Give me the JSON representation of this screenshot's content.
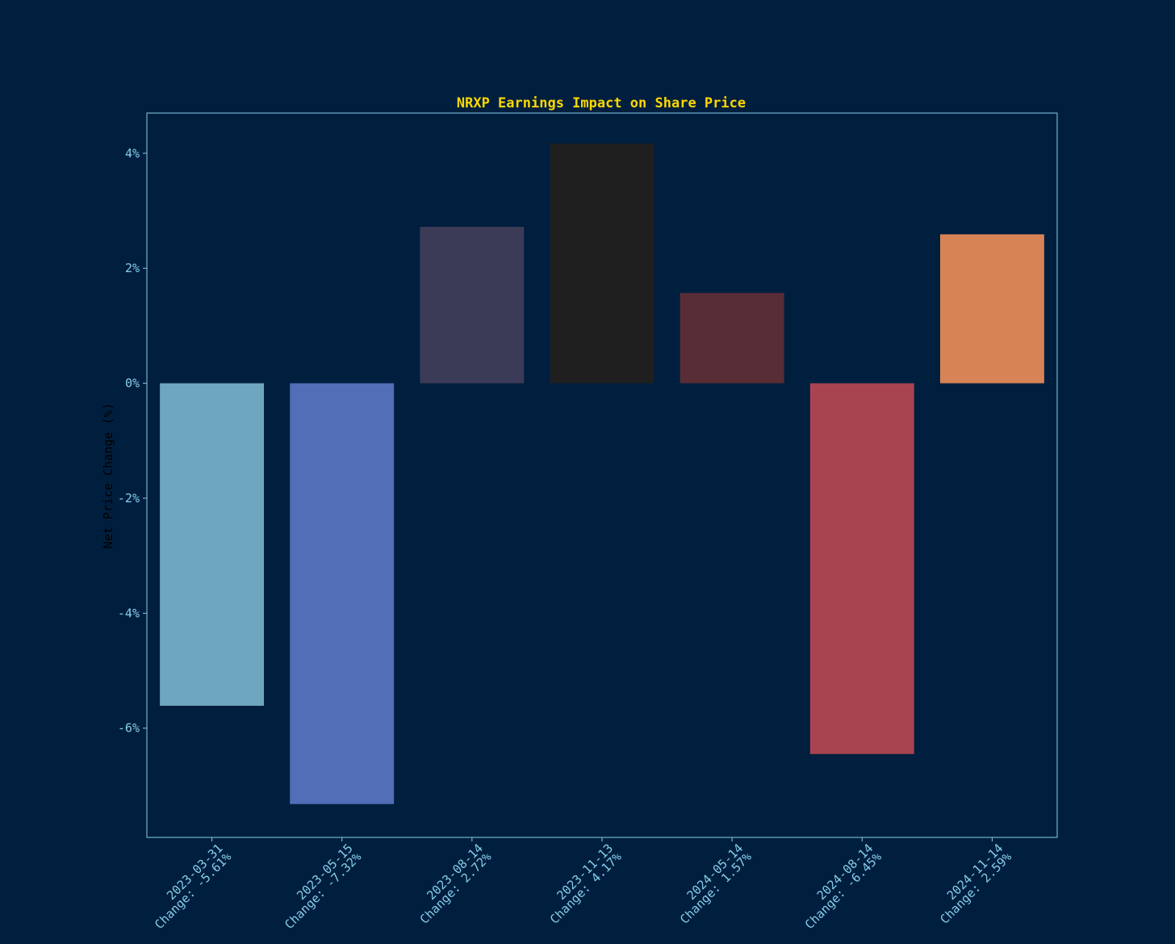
{
  "colors": {
    "background": "#001f3f",
    "title": "#ffd700",
    "axis": "#87ceeb",
    "ylabel": "#000000"
  },
  "chart_data": {
    "type": "bar",
    "title": "NRXP Earnings Impact on Share Price",
    "xlabel": "",
    "ylabel": "Net Price Change (%)",
    "ylim": [
      -7.9,
      4.7
    ],
    "yticks": [
      4,
      2,
      0,
      -2,
      -4,
      -6
    ],
    "ytick_labels": [
      "4%",
      "2%",
      "0%",
      "-2%",
      "-4%",
      "-6%"
    ],
    "categories": [
      "2023-03-31\nChange: -5.61%",
      "2023-05-15\nChange: -7.32%",
      "2023-08-14\nChange: 2.72%",
      "2023-11-13\nChange: 4.17%",
      "2024-05-14\nChange: 1.57%",
      "2024-08-14\nChange: -6.45%",
      "2024-11-14\nChange: 2.59%"
    ],
    "values": [
      -5.61,
      -7.32,
      2.72,
      4.17,
      1.57,
      -6.45,
      2.59
    ],
    "bar_colors": [
      "#6ea6bf",
      "#526eb7",
      "#3c3b57",
      "#1f1f1f",
      "#592d36",
      "#a8444f",
      "#d88356"
    ],
    "grid": false,
    "legend": "none"
  }
}
